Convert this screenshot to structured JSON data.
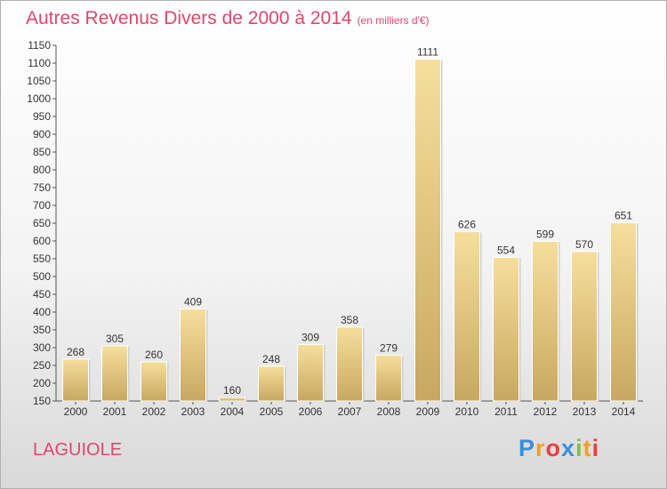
{
  "chart_data": {
    "type": "bar",
    "title": "Autres Revenus Divers de 2000 à 2014",
    "unit": "(en milliers d'€)",
    "categories": [
      "2000",
      "2001",
      "2002",
      "2003",
      "2004",
      "2005",
      "2006",
      "2007",
      "2008",
      "2009",
      "2010",
      "2011",
      "2012",
      "2013",
      "2014"
    ],
    "values": [
      268,
      305,
      260,
      409,
      160,
      248,
      309,
      358,
      279,
      1111,
      626,
      554,
      599,
      570,
      651
    ],
    "ylim": [
      150,
      1150
    ],
    "ytick_step": 50,
    "grid": false,
    "bar_color": "#e3c77f"
  },
  "footer": {
    "location": "LAGUIOLE",
    "logo_letters": [
      "P",
      "r",
      "o",
      "x",
      "i",
      "t",
      "i"
    ]
  }
}
